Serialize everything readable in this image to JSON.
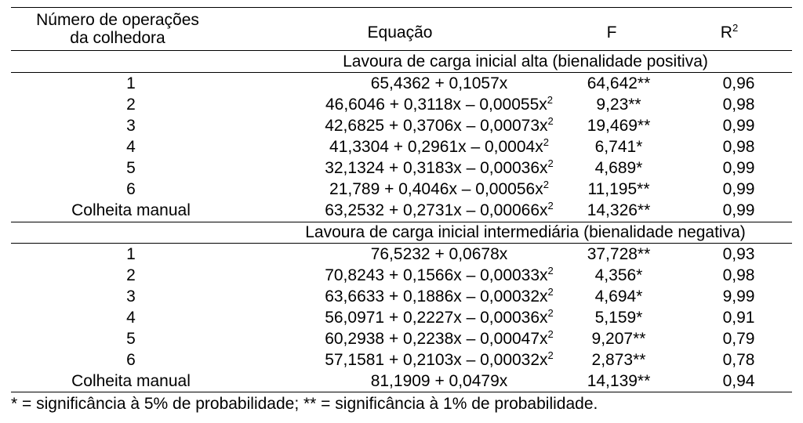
{
  "headers": {
    "operations_line1": "Número de operações",
    "operations_line2": "da colhedora",
    "equation": "Equação",
    "f": "F",
    "r2_base": "R",
    "r2_sup": "2"
  },
  "group_high": {
    "title": "Lavoura de carga inicial alta (bienalidade positiva)",
    "rows": [
      {
        "op": "1",
        "eq": "65,4362 + 0,1057x",
        "eq_sup": "",
        "f": "64,642**",
        "r2": "0,96"
      },
      {
        "op": "2",
        "eq": "46,6046 + 0,3118x – 0,00055x",
        "eq_sup": "2",
        "f": "9,23**",
        "r2": "0,98"
      },
      {
        "op": "3",
        "eq": "42,6825 + 0,3706x – 0,00073x",
        "eq_sup": "2",
        "f": "19,469**",
        "r2": "0,99"
      },
      {
        "op": "4",
        "eq": "41,3304 + 0,2961x – 0,0004x",
        "eq_sup": "2",
        "f": "6,741*",
        "r2": "0,98"
      },
      {
        "op": "5",
        "eq": "32,1324 + 0,3183x – 0,00036x",
        "eq_sup": "2",
        "f": "4,689*",
        "r2": "0,99"
      },
      {
        "op": "6",
        "eq": "21,789 + 0,4046x – 0,00056x",
        "eq_sup": "2",
        "f": "11,195**",
        "r2": "0,99"
      },
      {
        "op": "Colheita manual",
        "eq": "63,2532 + 0,2731x – 0,00066x",
        "eq_sup": "2",
        "f": "14,326**",
        "r2": "0,99"
      }
    ]
  },
  "group_mid": {
    "title": "Lavoura de carga inicial intermediária (bienalidade negativa)",
    "rows": [
      {
        "op": "1",
        "eq": "76,5232 + 0,0678x",
        "eq_sup": "",
        "f": "37,728**",
        "r2": "0,93"
      },
      {
        "op": "2",
        "eq": "70,8243 + 0,1566x – 0,00033x",
        "eq_sup": "2",
        "f": "4,356*",
        "r2": "0,98"
      },
      {
        "op": "3",
        "eq": "63,6633 + 0,1886x – 0,00032x",
        "eq_sup": "2",
        "f": "4,694*",
        "r2": "9,99"
      },
      {
        "op": "4",
        "eq": "56,0971 + 0,2227x – 0,00036x",
        "eq_sup": "2",
        "f": "5,159*",
        "r2": "0,91"
      },
      {
        "op": "5",
        "eq": "60,2938 + 0,2238x – 0,00047x",
        "eq_sup": "2",
        "f": "9,207**",
        "r2": "0,79"
      },
      {
        "op": "6",
        "eq": "57,1581 + 0,2103x – 0,00032x",
        "eq_sup": "2",
        "f": "2,873**",
        "r2": "0,78"
      },
      {
        "op": "Colheita manual",
        "eq": "81,1909 + 0,0479x",
        "eq_sup": "",
        "f": "14,139**",
        "r2": "0,94"
      }
    ]
  },
  "footnote": "* = significância à 5% de probabilidade; ** = significância à 1% de probabilidade."
}
